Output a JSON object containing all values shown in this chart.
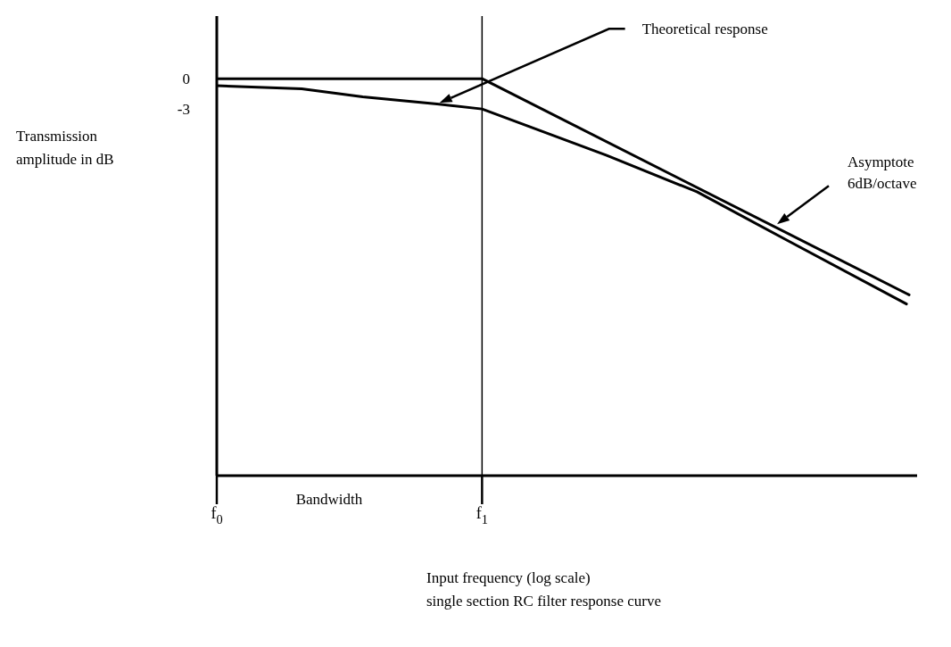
{
  "chart_data": {
    "type": "line",
    "ylabel": "Transmission amplitude in dB",
    "xlabel": "Input frequency (log scale)",
    "xlim": [
      0,
      2.64
    ],
    "xticks": [
      {
        "value": 0,
        "label": "f$_{0}$"
      },
      {
        "value": 1,
        "label": "f$_{1}$"
      }
    ],
    "ylim": [
      -39.3,
      6.2
    ],
    "yticks": [
      0,
      -3
    ],
    "marker": "none",
    "line_style": "solid",
    "series": [
      {
        "color": "#000000",
        "x": [
          0,
          1,
          2.61
        ],
        "values": [
          0,
          0,
          -21.4
        ]
      },
      {
        "color": "#000000",
        "x": [
          0,
          0.32,
          0.55,
          0.83,
          1,
          1.47,
          1.81,
          2.15,
          2.6
        ],
        "values": [
          -0.7,
          -1.0,
          -1.8,
          -2.5,
          -3,
          -7.6,
          -11.2,
          -16.0,
          -22.3
        ]
      }
    ],
    "ref_lines": [
      {
        "axis": "x",
        "value": 1,
        "color": "#000000"
      }
    ],
    "annotations": [
      "Theoretical response",
      "Asymptote 6dB/octave",
      "Bandwidth",
      "single section RC filter response curve"
    ]
  }
}
